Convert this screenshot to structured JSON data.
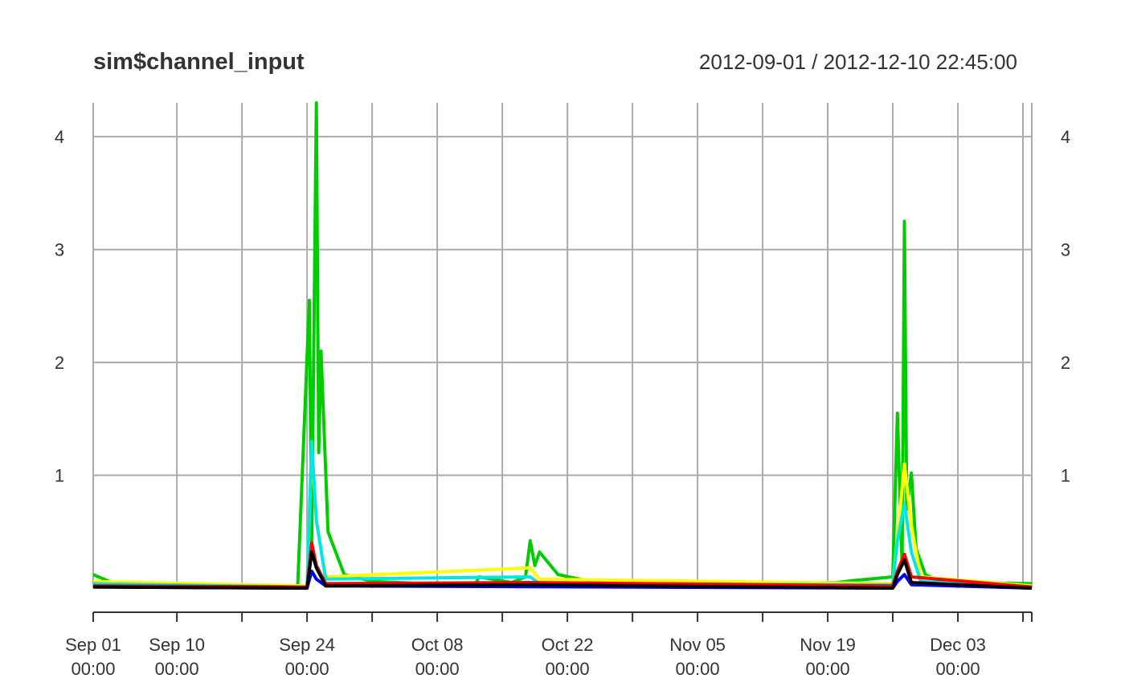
{
  "title": "sim$channel_input",
  "date_range": "2012-09-01 / 2012-12-10 22:45:00",
  "chart_data": {
    "type": "line",
    "title": "sim$channel_input",
    "subtitle": "2012-09-01 / 2012-12-10 22:45:00",
    "xlabel": "",
    "ylabel": "",
    "x_range": [
      "2012-09-01 00:00",
      "2012-12-10 22:45"
    ],
    "ylim": [
      -0.18,
      4.3
    ],
    "grid": true,
    "y_ticks": [
      1,
      2,
      3,
      4
    ],
    "y_tick_labels": [
      "1",
      "2",
      "3",
      "4"
    ],
    "x_grid_dates": [
      "2012-09-01",
      "2012-09-10",
      "2012-09-17",
      "2012-09-24",
      "2012-10-01",
      "2012-10-08",
      "2012-10-15",
      "2012-10-22",
      "2012-10-29",
      "2012-11-05",
      "2012-11-12",
      "2012-11-19",
      "2012-11-26",
      "2012-12-03",
      "2012-12-10"
    ],
    "x_major_ticks": [
      {
        "date": "2012-09-01",
        "line1": "Sep 01",
        "line2": "00:00"
      },
      {
        "date": "2012-09-10",
        "line1": "Sep 10",
        "line2": "00:00"
      },
      {
        "date": "2012-09-24",
        "line1": "Sep 24",
        "line2": "00:00"
      },
      {
        "date": "2012-10-08",
        "line1": "Oct 08",
        "line2": "00:00"
      },
      {
        "date": "2012-10-22",
        "line1": "Oct 22",
        "line2": "00:00"
      },
      {
        "date": "2012-11-05",
        "line1": "Nov 05",
        "line2": "00:00"
      },
      {
        "date": "2012-11-19",
        "line1": "Nov 19",
        "line2": "00:00"
      },
      {
        "date": "2012-12-03",
        "line1": "Dec 03",
        "line2": "00:00"
      }
    ],
    "series": [
      {
        "color": "#00cc00",
        "x": [
          "2012-09-01 00:00",
          "2012-09-03 00:00",
          "2012-09-10 00:00",
          "2012-09-23 00:00",
          "2012-09-24 06:00",
          "2012-09-24 12:00",
          "2012-09-25 00:00",
          "2012-09-25 06:00",
          "2012-09-25 12:00",
          "2012-09-26 06:00",
          "2012-09-28 00:00",
          "2012-10-01 00:00",
          "2012-10-12 00:00",
          "2012-10-12 12:00",
          "2012-10-16 00:00",
          "2012-10-17 12:00",
          "2012-10-18 00:00",
          "2012-10-18 12:00",
          "2012-10-19 00:00",
          "2012-10-21 00:00",
          "2012-10-25 00:00",
          "2012-11-01 00:00",
          "2012-11-20 00:00",
          "2012-11-22 00:00",
          "2012-11-26 00:00",
          "2012-11-26 12:00",
          "2012-11-27 00:00",
          "2012-11-27 06:00",
          "2012-11-27 12:00",
          "2012-11-28 00:00",
          "2012-11-28 12:00",
          "2012-11-29 12:00",
          "2012-12-01 00:00",
          "2012-12-03 00:00",
          "2012-12-10 22:45"
        ],
        "y": [
          0.12,
          0.05,
          0.03,
          0.02,
          2.55,
          0.4,
          4.3,
          1.2,
          2.1,
          0.5,
          0.12,
          0.06,
          0.02,
          0.1,
          0.05,
          0.1,
          0.42,
          0.2,
          0.32,
          0.12,
          0.05,
          0.02,
          0.05,
          0.07,
          0.1,
          1.55,
          0.2,
          3.25,
          0.7,
          1.02,
          0.35,
          0.12,
          0.06,
          0.05,
          0.04
        ]
      },
      {
        "color": "#ffff00",
        "x": [
          "2012-09-01 00:00",
          "2012-09-24 00:00",
          "2012-09-24 12:00",
          "2012-09-25 00:00",
          "2012-09-26 00:00",
          "2012-10-18 00:00",
          "2012-10-19 00:00",
          "2012-11-26 00:00",
          "2012-11-26 12:00",
          "2012-11-27 06:00",
          "2012-11-28 00:00",
          "2012-11-29 00:00",
          "2012-12-10 22:45"
        ],
        "y": [
          0.06,
          0.02,
          1.25,
          0.6,
          0.1,
          0.18,
          0.08,
          0.04,
          0.45,
          1.1,
          0.55,
          0.1,
          0.02
        ]
      },
      {
        "color": "#00e5e5",
        "x": [
          "2012-09-01 00:00",
          "2012-09-24 00:00",
          "2012-09-24 12:00",
          "2012-09-25 00:00",
          "2012-09-26 00:00",
          "2012-10-18 00:00",
          "2012-10-19 00:00",
          "2012-11-26 00:00",
          "2012-11-26 12:00",
          "2012-11-27 06:00",
          "2012-11-28 00:00",
          "2012-11-29 00:00",
          "2012-12-10 22:45"
        ],
        "y": [
          0.04,
          0.01,
          1.3,
          0.6,
          0.08,
          0.1,
          0.04,
          0.03,
          0.42,
          0.75,
          0.32,
          0.06,
          0.01
        ]
      },
      {
        "color": "#ff0000",
        "x": [
          "2012-09-01 00:00",
          "2012-09-24 00:00",
          "2012-09-24 12:00",
          "2012-09-25 00:00",
          "2012-09-26 00:00",
          "2012-10-18 00:00",
          "2012-11-26 00:00",
          "2012-11-26 12:00",
          "2012-11-27 06:00",
          "2012-11-28 00:00",
          "2012-12-10 22:45"
        ],
        "y": [
          0.02,
          0.01,
          0.4,
          0.2,
          0.04,
          0.05,
          0.02,
          0.15,
          0.3,
          0.1,
          0.01
        ]
      },
      {
        "color": "#0000ff",
        "x": [
          "2012-09-01 00:00",
          "2012-09-24 00:00",
          "2012-09-24 12:00",
          "2012-09-25 00:00",
          "2012-09-26 00:00",
          "2012-11-26 00:00",
          "2012-11-26 12:00",
          "2012-11-27 06:00",
          "2012-11-28 00:00",
          "2012-12-10 22:45"
        ],
        "y": [
          0.01,
          0.0,
          0.15,
          0.08,
          0.02,
          0.0,
          0.06,
          0.12,
          0.03,
          0.0
        ]
      },
      {
        "color": "#000000",
        "x": [
          "2012-09-01 00:00",
          "2012-09-24 00:00",
          "2012-09-24 12:00",
          "2012-09-25 00:00",
          "2012-09-26 00:00",
          "2012-10-18 00:00",
          "2012-11-26 00:00",
          "2012-11-26 12:00",
          "2012-11-27 06:00",
          "2012-11-28 00:00",
          "2012-12-10 22:45"
        ],
        "y": [
          0.01,
          0.0,
          0.32,
          0.18,
          0.02,
          0.03,
          0.0,
          0.12,
          0.25,
          0.05,
          0.0
        ]
      }
    ]
  }
}
